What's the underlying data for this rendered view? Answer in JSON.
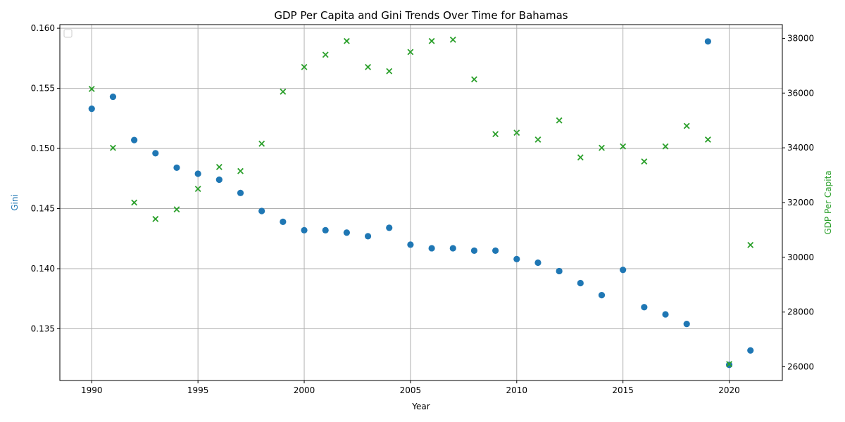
{
  "chart_data": {
    "type": "scatter",
    "title": "GDP Per Capita and Gini Trends Over Time for Bahamas",
    "xlabel": "Year",
    "ylabel_left": "Gini",
    "ylabel_right": "GDP Per Capita",
    "xlim": [
      1988.5,
      2022.5
    ],
    "ylim_left": [
      0.1307,
      0.1603
    ],
    "ylim_right": [
      25500,
      38500
    ],
    "x_ticks": [
      1990,
      1995,
      2000,
      2005,
      2010,
      2015,
      2020
    ],
    "y_ticks_left": [
      0.135,
      0.14,
      0.145,
      0.15,
      0.155,
      0.16
    ],
    "y_ticks_right": [
      26000,
      28000,
      30000,
      32000,
      34000,
      36000,
      38000
    ],
    "grid": true,
    "legend_placement": "upper-left",
    "colors": {
      "gini": "#1f77b4",
      "gdp": "#2ca02c"
    },
    "series": [
      {
        "axis": "left",
        "marker": "circle",
        "x": [
          1990,
          1991,
          1992,
          1993,
          1994,
          1995,
          1996,
          1997,
          1998,
          1999,
          2000,
          2001,
          2002,
          2003,
          2004,
          2005,
          2006,
          2007,
          2008,
          2009,
          2010,
          2011,
          2012,
          2013,
          2014,
          2015,
          2016,
          2017,
          2018,
          2019,
          2020,
          2021
        ],
        "values": [
          0.1533,
          0.1543,
          0.1507,
          0.1496,
          0.1484,
          0.1479,
          0.1474,
          0.1463,
          0.1448,
          0.1439,
          0.1432,
          0.1432,
          0.143,
          0.1427,
          0.1434,
          0.142,
          0.1417,
          0.1417,
          0.1415,
          0.1415,
          0.1408,
          0.1405,
          0.1398,
          0.1388,
          0.1378,
          0.1399,
          0.1368,
          0.1362,
          0.1354,
          0.1589,
          0.132,
          0.1332
        ]
      },
      {
        "axis": "right",
        "marker": "x",
        "x": [
          1990,
          1991,
          1992,
          1993,
          1994,
          1995,
          1996,
          1997,
          1998,
          1999,
          2000,
          2001,
          2002,
          2003,
          2004,
          2005,
          2006,
          2007,
          2008,
          2009,
          2010,
          2011,
          2012,
          2013,
          2014,
          2015,
          2016,
          2017,
          2018,
          2019,
          2020,
          2021
        ],
        "values": [
          36150,
          34000,
          32000,
          31400,
          31750,
          32500,
          33300,
          33150,
          34150,
          36050,
          36950,
          37400,
          37900,
          36950,
          36800,
          37500,
          37900,
          37950,
          36500,
          34500,
          34550,
          34300,
          35000,
          33650,
          34000,
          34050,
          33500,
          34050,
          34800,
          34300,
          26100,
          30450
        ]
      }
    ]
  }
}
